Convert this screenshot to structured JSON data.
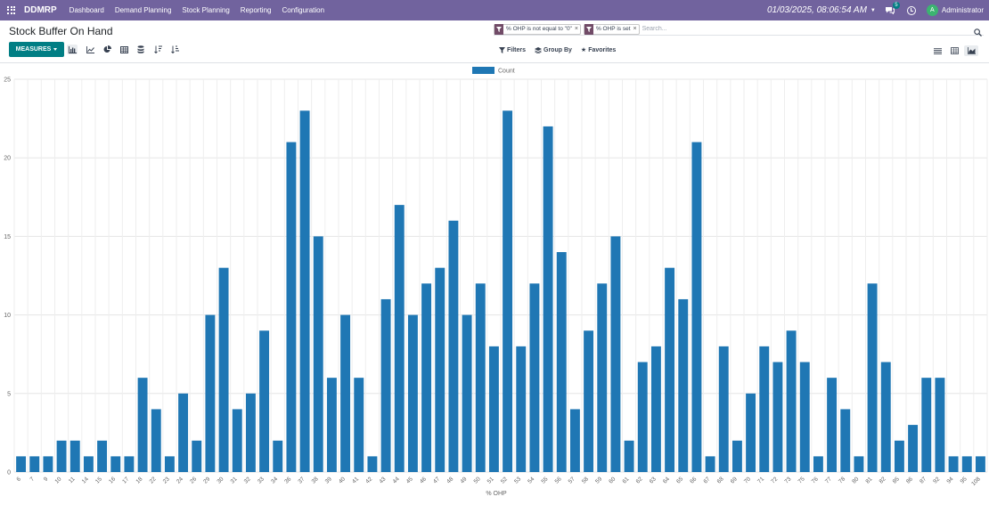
{
  "navbar": {
    "app_name": "DDMRP",
    "menu": [
      "Dashboard",
      "Demand Planning",
      "Stock Planning",
      "Reporting",
      "Configuration"
    ],
    "datetime": "01/03/2025, 08:06:54 AM",
    "messages_count": "5",
    "user_initial": "A",
    "user_name": "Administrator",
    "bg_color": "#71639e"
  },
  "control_panel": {
    "title": "Stock Buffer On Hand",
    "measures_label": "MEASURES",
    "facets": [
      "% OHP is not equal to \"0\"",
      "% OHP is set"
    ],
    "search_placeholder": "Search...",
    "filters_label": "Filters",
    "group_by_label": "Group By",
    "favorites_label": "Favorites",
    "accent_color": "#017e84"
  },
  "chart_data": {
    "type": "bar",
    "legend": [
      "Count"
    ],
    "legend_position": "top-center",
    "bar_color": "#1f77b4",
    "xlabel": "% OHP",
    "ylabel": "",
    "ylim": [
      0,
      25
    ],
    "yticks": [
      0,
      5,
      10,
      15,
      20,
      25
    ],
    "grid": true,
    "categories": [
      "6",
      "7",
      "9",
      "10",
      "11",
      "14",
      "15",
      "16",
      "17",
      "18",
      "22",
      "23",
      "24",
      "26",
      "29",
      "30",
      "31",
      "32",
      "33",
      "34",
      "36",
      "37",
      "38",
      "39",
      "40",
      "41",
      "42",
      "43",
      "44",
      "45",
      "46",
      "47",
      "48",
      "49",
      "50",
      "51",
      "52",
      "53",
      "54",
      "55",
      "56",
      "57",
      "58",
      "59",
      "60",
      "61",
      "62",
      "63",
      "64",
      "65",
      "66",
      "67",
      "68",
      "69",
      "70",
      "71",
      "72",
      "73",
      "75",
      "76",
      "77",
      "78",
      "80",
      "81",
      "82",
      "85",
      "86",
      "87",
      "92",
      "94",
      "95",
      "108"
    ],
    "series": [
      {
        "name": "Count",
        "values": [
          1,
          1,
          1,
          2,
          2,
          1,
          2,
          1,
          1,
          6,
          4,
          1,
          5,
          2,
          10,
          13,
          4,
          5,
          9,
          2,
          21,
          23,
          15,
          6,
          10,
          6,
          1,
          11,
          17,
          10,
          12,
          13,
          16,
          10,
          12,
          8,
          23,
          8,
          12,
          22,
          14,
          4,
          9,
          12,
          15,
          2,
          7,
          8,
          13,
          11,
          21,
          1,
          8,
          2,
          5,
          8,
          7,
          9,
          7,
          1,
          6,
          4,
          1,
          12,
          7,
          2,
          3,
          6,
          6,
          1,
          1,
          1
        ]
      }
    ]
  }
}
